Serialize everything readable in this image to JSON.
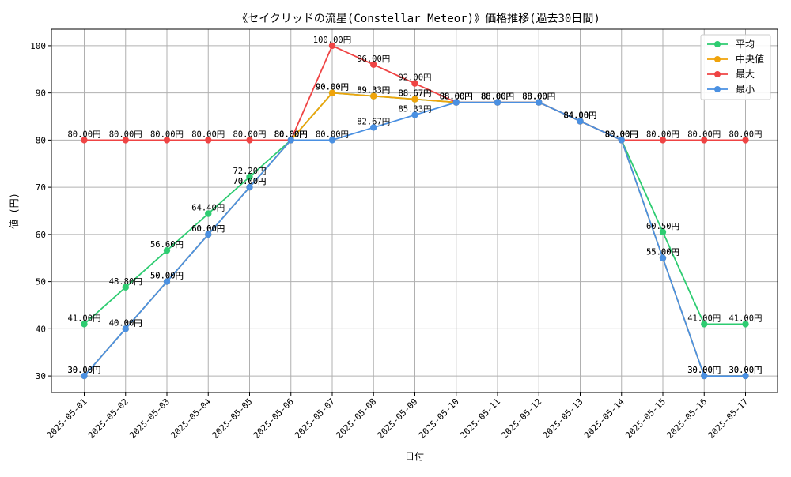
{
  "chart_data": {
    "type": "line",
    "title": "《セイクリッドの流星(Constellar Meteor)》価格推移(過去30日間)",
    "xlabel": "日付",
    "ylabel": "値 (円)",
    "ylim": [
      26.5,
      103.5
    ],
    "yticks": [
      30,
      40,
      50,
      60,
      70,
      80,
      90,
      100
    ],
    "grid": true,
    "legend_position": "top-right",
    "value_suffix": "円",
    "categories": [
      "2025-05-01",
      "2025-05-02",
      "2025-05-03",
      "2025-05-04",
      "2025-05-05",
      "2025-05-06",
      "2025-05-07",
      "2025-05-08",
      "2025-05-09",
      "2025-05-10",
      "2025-05-11",
      "2025-05-12",
      "2025-05-13",
      "2025-05-14",
      "2025-05-15",
      "2025-05-16",
      "2025-05-17"
    ],
    "series": [
      {
        "name": "平均",
        "color": "#2ecc71",
        "values": [
          41.0,
          48.8,
          56.6,
          64.4,
          72.2,
          80.0,
          90.0,
          89.33,
          88.67,
          88.0,
          88.0,
          88.0,
          84.0,
          80.0,
          60.5,
          41.0,
          41.0
        ]
      },
      {
        "name": "中央値",
        "color": "#f0a30a",
        "values": [
          30.0,
          40.0,
          50.0,
          60.0,
          70.0,
          80.0,
          90.0,
          89.33,
          88.67,
          88.0,
          88.0,
          88.0,
          84.0,
          80.0,
          55.0,
          30.0,
          30.0
        ]
      },
      {
        "name": "最大",
        "color": "#ef4444",
        "values": [
          80.0,
          80.0,
          80.0,
          80.0,
          80.0,
          80.0,
          100.0,
          96.0,
          92.0,
          88.0,
          88.0,
          88.0,
          84.0,
          80.0,
          80.0,
          80.0,
          80.0
        ]
      },
      {
        "name": "最小",
        "color": "#4a90e2",
        "values": [
          30.0,
          40.0,
          50.0,
          60.0,
          70.0,
          80.0,
          80.0,
          82.67,
          85.33,
          88.0,
          88.0,
          88.0,
          84.0,
          80.0,
          55.0,
          30.0,
          30.0
        ]
      }
    ]
  }
}
